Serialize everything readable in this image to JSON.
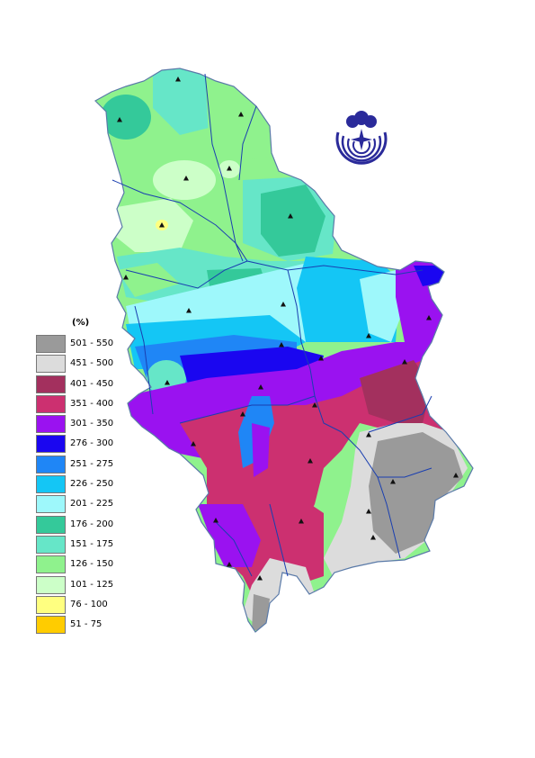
{
  "legend": {
    "unit": "(%)",
    "classes": [
      {
        "label": "501 - 550",
        "color": "#9a9a9a"
      },
      {
        "label": "451 - 500",
        "color": "#dcdcdc"
      },
      {
        "label": "401 - 450",
        "color": "#a3305e"
      },
      {
        "label": "351 - 400",
        "color": "#cc3070"
      },
      {
        "label": "301 - 350",
        "color": "#9a12f0"
      },
      {
        "label": "276 - 300",
        "color": "#1a06f0"
      },
      {
        "label": "251 - 275",
        "color": "#1f86f6"
      },
      {
        "label": "226 - 250",
        "color": "#14c6f5"
      },
      {
        "label": "201 - 225",
        "color": "#9ef8fb"
      },
      {
        "label": "176 - 200",
        "color": "#34c99a"
      },
      {
        "label": "151 - 175",
        "color": "#66e6c8"
      },
      {
        "label": "126 - 150",
        "color": "#8ff28d"
      },
      {
        "label": "101 - 125",
        "color": "#ccffc8"
      },
      {
        "label": "76 - 100",
        "color": "#ffff80"
      },
      {
        "label": "51 - 75",
        "color": "#ffcc00"
      }
    ]
  },
  "map": {
    "river_color": "#1a3fb0",
    "station_marker": "triangle",
    "logo": "hydrometeorological-service-emblem"
  }
}
